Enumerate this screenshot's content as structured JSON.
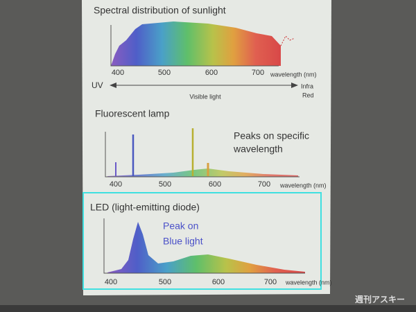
{
  "slide": {
    "sunlight": {
      "title": "Spectral distribution of sunlight",
      "ticks": [
        "400",
        "500",
        "600",
        "700"
      ],
      "axis_label": "wavelength (nm)",
      "uv": "UV",
      "visible": "Visible light",
      "infrared": [
        "Infra",
        "Red"
      ]
    },
    "fluorescent": {
      "title": "Fluorescent lamp",
      "annotation": [
        "Peaks on specific",
        "wavelength"
      ],
      "ticks": [
        "400",
        "500",
        "600",
        "700"
      ],
      "axis_label": "wavelength (nm)"
    },
    "led": {
      "title": "LED (light-emitting diode)",
      "annotation": [
        "Peak on",
        "Blue light"
      ],
      "ticks": [
        "400",
        "500",
        "600",
        "700"
      ],
      "axis_label": "wavelength (nm)"
    }
  },
  "watermark": "週刊アスキー"
}
